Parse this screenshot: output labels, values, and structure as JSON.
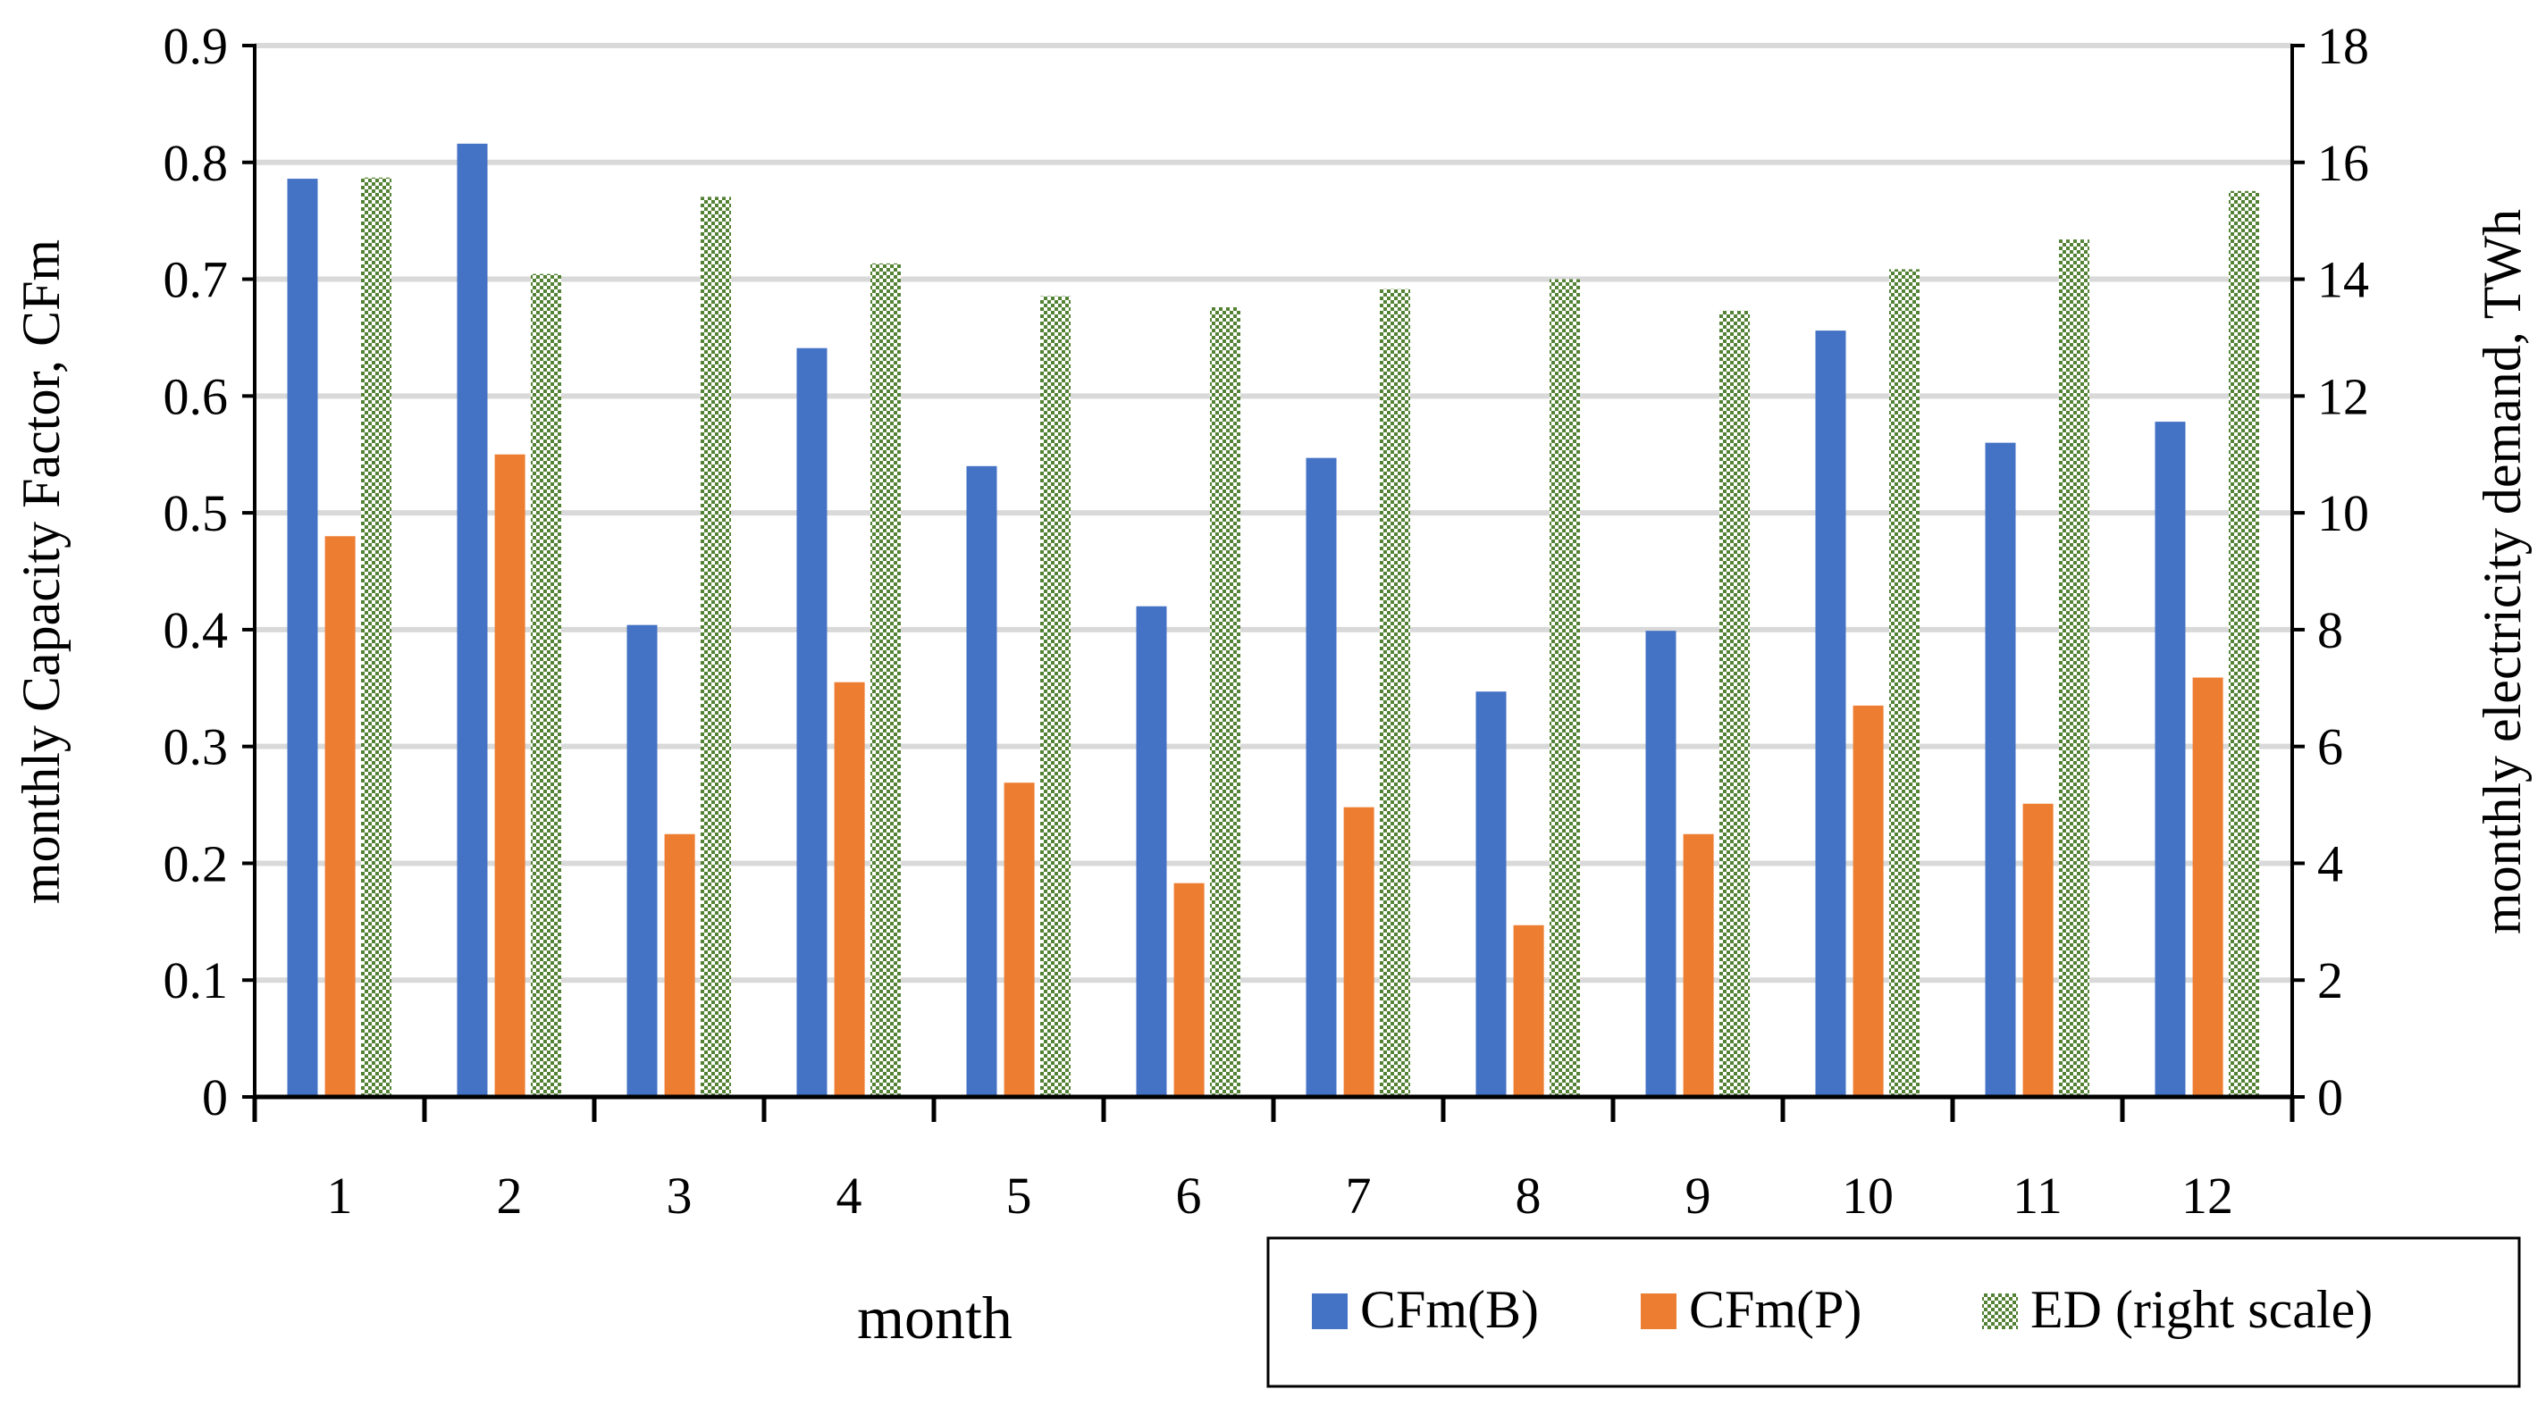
{
  "chart_data": {
    "type": "bar",
    "title": "",
    "xlabel": "month",
    "ylabel": "monthly Capacity Factor, CFm",
    "y2label": "monthly electricity demand, TWh",
    "categories": [
      "1",
      "2",
      "3",
      "4",
      "5",
      "6",
      "7",
      "8",
      "9",
      "10",
      "11",
      "12"
    ],
    "ylim": [
      0,
      0.9
    ],
    "yticks": [
      "0",
      "0.1",
      "0.2",
      "0.3",
      "0.4",
      "0.5",
      "0.6",
      "0.7",
      "0.8",
      "0.9"
    ],
    "y2lim": [
      0,
      18
    ],
    "y2ticks": [
      "0",
      "2",
      "4",
      "6",
      "8",
      "10",
      "12",
      "14",
      "16",
      "18"
    ],
    "grid": true,
    "legend_position": "bottom-right",
    "series": [
      {
        "name": "CFm(B)",
        "axis": "left",
        "color": "#4472C4",
        "pattern": "solid",
        "values": [
          0.786,
          0.816,
          0.404,
          0.641,
          0.54,
          0.42,
          0.547,
          0.347,
          0.399,
          0.656,
          0.56,
          0.578
        ]
      },
      {
        "name": "CFm(P)",
        "axis": "left",
        "color": "#ED7D31",
        "pattern": "solid",
        "values": [
          0.48,
          0.55,
          0.225,
          0.355,
          0.269,
          0.183,
          0.248,
          0.147,
          0.225,
          0.335,
          0.251,
          0.359
        ]
      },
      {
        "name": "ED (right scale)",
        "axis": "right",
        "color": "#548235",
        "pattern": "checker",
        "values": [
          15.74,
          14.09,
          15.41,
          14.27,
          13.71,
          13.52,
          13.83,
          14.0,
          13.46,
          14.17,
          14.68,
          15.51
        ]
      }
    ]
  }
}
